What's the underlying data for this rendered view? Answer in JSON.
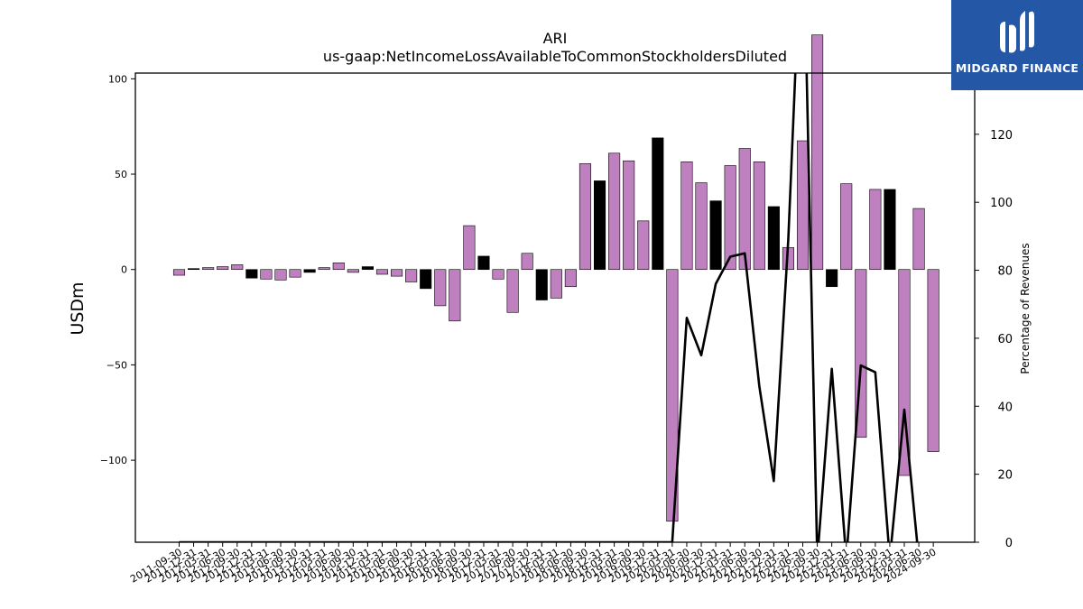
{
  "chart_data": {
    "type": "bar",
    "title": "ARI",
    "subtitle": "us-gaap:NetIncomeLossAvailableToCommonStockholdersDiluted",
    "ylabel": "USDm",
    "y2label": "Percentage of Revenues",
    "ylim": [
      -143,
      103
    ],
    "y2lim": [
      0,
      138
    ],
    "yticks": [
      -100,
      -50,
      0,
      50,
      100
    ],
    "y2ticks": [
      0,
      20,
      40,
      60,
      80,
      100,
      120
    ],
    "categories": [
      "2011-09-30",
      "2011-12-31",
      "2012-03-31",
      "2012-06-30",
      "2012-09-30",
      "2012-12-31",
      "2013-03-31",
      "2013-06-30",
      "2013-09-30",
      "2013-12-31",
      "2014-03-31",
      "2014-06-30",
      "2014-09-30",
      "2014-12-31",
      "2015-03-31",
      "2015-06-30",
      "2015-09-30",
      "2015-12-31",
      "2016-03-31",
      "2016-06-30",
      "2016-09-30",
      "2016-12-31",
      "2017-03-31",
      "2017-06-30",
      "2017-09-30",
      "2017-12-31",
      "2018-03-31",
      "2018-06-30",
      "2018-09-30",
      "2018-12-31",
      "2019-03-31",
      "2019-06-30",
      "2019-09-30",
      "2019-12-31",
      "2020-03-31",
      "2020-06-30",
      "2020-09-30",
      "2020-12-31",
      "2021-03-31",
      "2021-06-30",
      "2021-09-30",
      "2021-12-31",
      "2022-03-31",
      "2022-06-30",
      "2022-09-30",
      "2022-12-31",
      "2023-03-31",
      "2023-06-30",
      "2023-09-30",
      "2023-12-31",
      "2024-03-31",
      "2024-06-30",
      "2024-09-30"
    ],
    "series": [
      {
        "type": "bar",
        "values": [
          -3,
          0.5,
          1,
          1.5,
          2.5,
          -4.5,
          -5,
          -5.5,
          -4,
          -1.5,
          1,
          3.5,
          -1.5,
          1.5,
          -2.5,
          -3.5,
          -6.5,
          -10,
          -19,
          -27,
          23,
          7,
          -5,
          -22.5,
          8.5,
          -16,
          -15,
          -9,
          55.5,
          46.5,
          61,
          57,
          25.5,
          69,
          -132,
          56.5,
          45.5,
          36,
          54.5,
          63.5,
          56.5,
          33,
          11.5,
          67.5,
          123,
          -9,
          45,
          -88,
          42,
          42,
          -108,
          32,
          -95.5
        ],
        "highlight": [
          false,
          true,
          false,
          false,
          false,
          true,
          false,
          false,
          false,
          true,
          false,
          false,
          false,
          true,
          false,
          false,
          false,
          true,
          false,
          false,
          false,
          true,
          false,
          false,
          false,
          true,
          false,
          false,
          false,
          true,
          false,
          false,
          false,
          true,
          false,
          false,
          false,
          true,
          false,
          false,
          false,
          true,
          false,
          false,
          false,
          true,
          false,
          false,
          false,
          true,
          false,
          false,
          false
        ]
      },
      {
        "type": "line",
        "axis": "right",
        "values": [
          0,
          0,
          0,
          0,
          0,
          0,
          0,
          0,
          0,
          0,
          0,
          0,
          0,
          0,
          0,
          0,
          0,
          0,
          0,
          0,
          0,
          0,
          0,
          0,
          0,
          0,
          0,
          0,
          0,
          0,
          0,
          0,
          0,
          0,
          0,
          66,
          55,
          76,
          84,
          85,
          46,
          18,
          89,
          190,
          -5,
          51,
          -5,
          52,
          50,
          -5,
          39,
          -5,
          null
        ]
      }
    ],
    "colors": {
      "bar": "#bf80bf",
      "highlight_bar": "#000000",
      "line": "#000000"
    },
    "grid": false,
    "legend": "none"
  },
  "logo": {
    "text": "MIDGARD FINANCE",
    "background": "#2557a7"
  }
}
